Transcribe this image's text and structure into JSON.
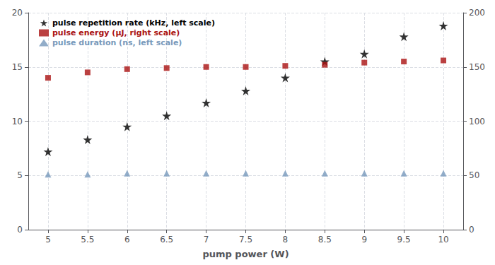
{
  "chart_data": {
    "type": "scatter",
    "xlabel": "pump power (W)",
    "x": [
      5,
      5.5,
      6,
      6.5,
      7,
      7.5,
      8,
      8.5,
      9,
      9.5,
      10
    ],
    "series": [
      {
        "name": "pulse repetition rate (kHz, left scale)",
        "color": "#000000",
        "marker": "star",
        "values": [
          7.2,
          8.3,
          9.5,
          10.5,
          11.7,
          12.8,
          14.0,
          15.5,
          16.2,
          17.8,
          18.8
        ]
      },
      {
        "name": "pulse energy (μJ, right scale)",
        "color": "#aa1111",
        "marker": "square",
        "axis": "y2",
        "values": [
          140,
          145,
          148,
          149,
          150,
          150,
          151,
          152,
          154,
          155,
          156
        ]
      },
      {
        "name": "pulse duration (ns, left scale)",
        "color": "#7799bb",
        "marker": "triangle",
        "values": [
          5.1,
          5.1,
          5.2,
          5.2,
          5.2,
          5.2,
          5.2,
          5.2,
          5.2,
          5.2,
          5.2
        ]
      }
    ],
    "xlim": [
      4.75,
      10.25
    ],
    "xticks": [
      5,
      5.5,
      6,
      6.5,
      7,
      7.5,
      8,
      8.5,
      9,
      9.5,
      10
    ],
    "ylim": [
      0,
      20
    ],
    "yticks": [
      0,
      5,
      10,
      15,
      20
    ],
    "y2lim": [
      0,
      200
    ],
    "y2ticks": [
      0,
      50,
      100,
      150,
      200
    ],
    "grid": true,
    "legend": "upper left"
  }
}
